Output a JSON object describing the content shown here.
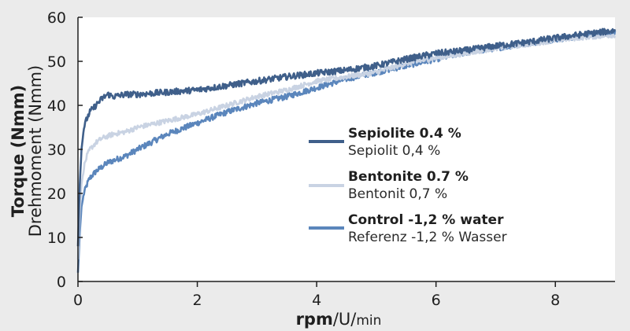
{
  "chart_data": {
    "type": "line",
    "ylabel_en": "Torque (Nmm)",
    "ylabel_de": "Drehmoment (Nmm)",
    "xlabel_part1": "rpm",
    "xlabel_sep": "/",
    "xlabel_part2": "U",
    "xlabel_part3": "min",
    "xlim": [
      0,
      9
    ],
    "ylim": [
      0,
      60
    ],
    "xticks": [
      0,
      2,
      4,
      6,
      8
    ],
    "yticks": [
      0,
      10,
      20,
      30,
      40,
      50,
      60
    ],
    "grid": false,
    "legend_position": "center-right",
    "series": [
      {
        "name": "Sepiolite 0.4 %",
        "name_de": "Sepiolit 0,4 %",
        "color": "#3f5f8a",
        "x": [
          0,
          0.03,
          0.06,
          0.1,
          0.15,
          0.2,
          0.3,
          0.4,
          0.5,
          0.6,
          0.8,
          1.0,
          1.5,
          2.0,
          2.5,
          3.0,
          3.5,
          4.0,
          4.5,
          5.0,
          5.5,
          6.0,
          6.5,
          7.0,
          7.5,
          8.0,
          8.5,
          9.0
        ],
        "y": [
          8,
          22,
          30,
          35,
          37,
          38.5,
          40,
          41.5,
          42.5,
          42,
          42.5,
          42.5,
          43,
          43.5,
          44.5,
          45.5,
          46.5,
          47.3,
          48,
          49,
          50.5,
          51.8,
          52.5,
          53.5,
          54.3,
          55.3,
          56.2,
          57
        ]
      },
      {
        "name": "Bentonite 0.7 %",
        "name_de": "Bentonit 0,7 %",
        "color": "#c9d3e3",
        "x": [
          0,
          0.03,
          0.06,
          0.1,
          0.15,
          0.2,
          0.3,
          0.4,
          0.5,
          0.6,
          0.8,
          1.0,
          1.5,
          2.0,
          2.5,
          3.0,
          3.5,
          4.0,
          4.5,
          5.0,
          5.5,
          6.0,
          6.5,
          7.0,
          7.5,
          8.0,
          8.5,
          9.0
        ],
        "y": [
          5,
          16,
          22,
          26,
          28.5,
          30,
          31.5,
          32.5,
          33,
          33.5,
          34,
          35,
          36.5,
          38,
          40,
          42,
          43.5,
          45.5,
          46.5,
          47.5,
          49.5,
          50.8,
          51.8,
          53,
          53.8,
          54.8,
          55.5,
          56
        ]
      },
      {
        "name": "Control -1,2 % water",
        "name_de": "Referenz -1,2 % Wasser",
        "color": "#5b86bc",
        "x": [
          0,
          0.03,
          0.06,
          0.1,
          0.15,
          0.2,
          0.3,
          0.4,
          0.5,
          0.6,
          0.8,
          1.0,
          1.5,
          2.0,
          2.5,
          3.0,
          3.5,
          4.0,
          4.5,
          5.0,
          5.5,
          6.0,
          6.5,
          7.0,
          7.5,
          8.0,
          8.5,
          9.0
        ],
        "y": [
          2,
          11,
          17,
          20,
          22,
          23.5,
          25,
          26,
          27,
          27.5,
          28.5,
          30,
          33.5,
          36,
          38.5,
          40.5,
          42,
          44,
          46,
          47.5,
          49,
          50.5,
          52,
          53,
          54,
          55,
          55.8,
          56.5
        ]
      }
    ]
  }
}
